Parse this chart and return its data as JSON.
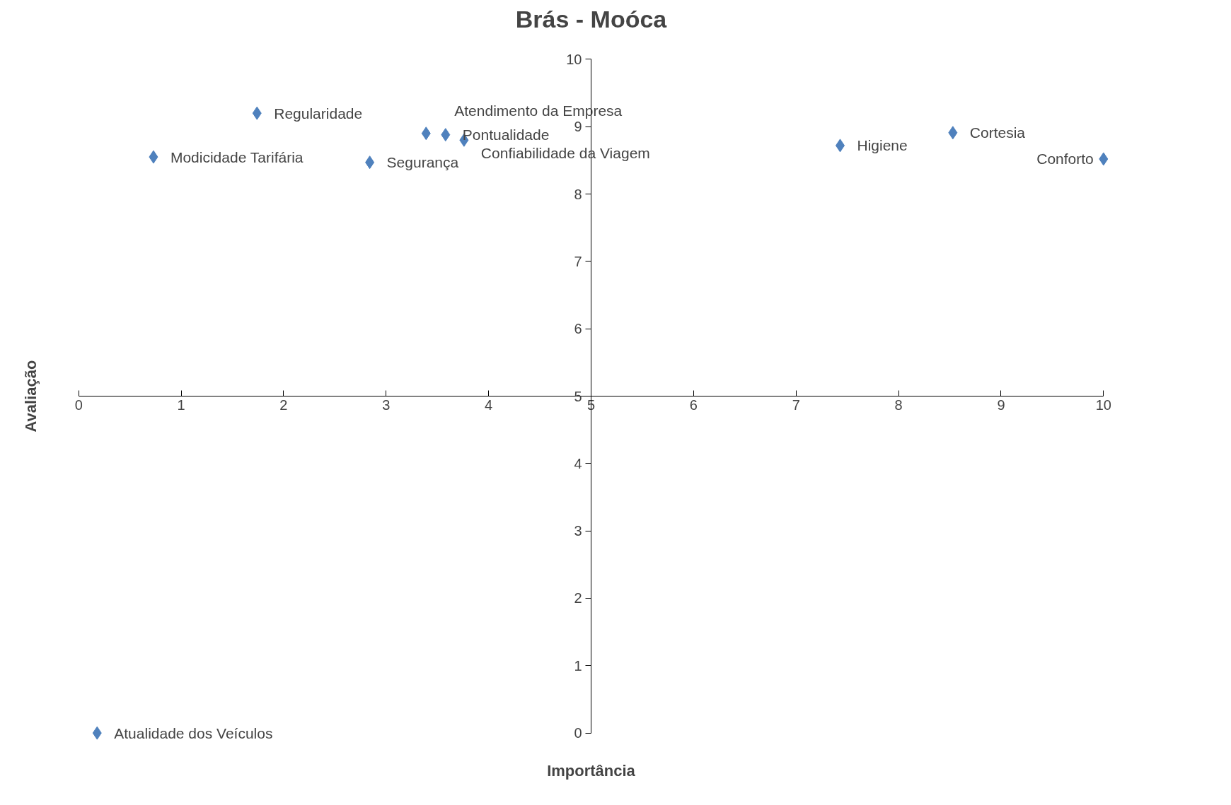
{
  "chart_data": {
    "type": "scatter",
    "title": "Brás - Moóca",
    "xlabel": "Importância",
    "ylabel": "Avaliação",
    "x": [
      1.74,
      0.73,
      2.84,
      3.39,
      3.58,
      3.76,
      7.43,
      8.53,
      10.0,
      0.18
    ],
    "values": [
      9.2,
      8.55,
      8.47,
      8.9,
      8.88,
      8.8,
      8.72,
      8.91,
      8.52,
      0.0
    ],
    "color": "#4f81bd",
    "marker": "diamond",
    "grid": false,
    "xlim": [
      0,
      10
    ],
    "ylim": [
      0,
      10
    ],
    "xticks": [
      0,
      1,
      2,
      3,
      4,
      5,
      6,
      7,
      8,
      9,
      10
    ],
    "yticks": [
      0,
      1,
      2,
      3,
      4,
      5,
      6,
      7,
      8,
      9,
      10
    ],
    "annotations": [
      {
        "text": "Regularidade",
        "x": 1.74,
        "y": 9.2
      },
      {
        "text": "Modicidade Tarifária",
        "x": 0.73,
        "y": 8.55
      },
      {
        "text": "Segurança",
        "x": 2.84,
        "y": 8.47
      },
      {
        "text": "Atendimento da Empresa",
        "x": 3.39,
        "y": 8.9
      },
      {
        "text": "Pontualidade",
        "x": 3.58,
        "y": 8.88
      },
      {
        "text": "Confiabilidade da Viagem",
        "x": 3.76,
        "y": 8.8
      },
      {
        "text": "Higiene",
        "x": 7.43,
        "y": 8.72
      },
      {
        "text": "Cortesia",
        "x": 8.53,
        "y": 8.91
      },
      {
        "text": "Conforto",
        "x": 10.0,
        "y": 8.52
      },
      {
        "text": "Atualidade dos Veículos",
        "x": 0.18,
        "y": 0.0
      }
    ]
  }
}
